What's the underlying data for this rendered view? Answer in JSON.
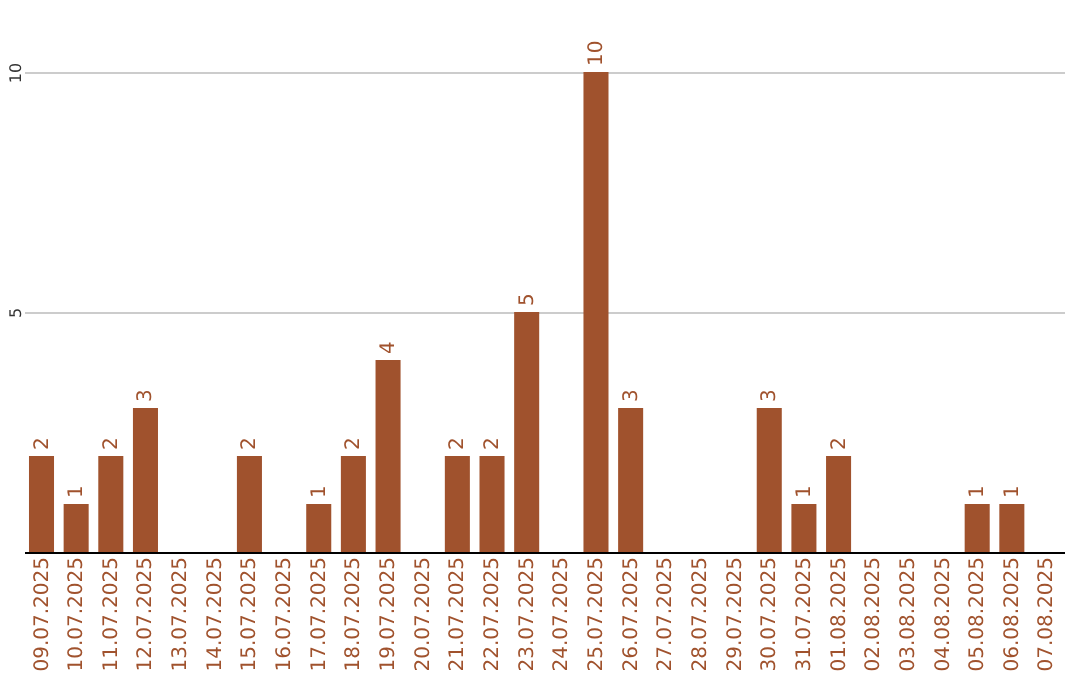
{
  "chart_data": {
    "type": "bar",
    "categories": [
      "09.07.2025",
      "10.07.2025",
      "11.07.2025",
      "12.07.2025",
      "13.07.2025",
      "14.07.2025",
      "15.07.2025",
      "16.07.2025",
      "17.07.2025",
      "18.07.2025",
      "19.07.2025",
      "20.07.2025",
      "21.07.2025",
      "22.07.2025",
      "23.07.2025",
      "24.07.2025",
      "25.07.2025",
      "26.07.2025",
      "27.07.2025",
      "28.07.2025",
      "29.07.2025",
      "30.07.2025",
      "31.07.2025",
      "01.08.2025",
      "02.08.2025",
      "03.08.2025",
      "04.08.2025",
      "05.08.2025",
      "06.08.2025",
      "07.08.2025"
    ],
    "values": [
      2,
      1,
      2,
      3,
      0,
      0,
      2,
      0,
      1,
      2,
      4,
      0,
      2,
      2,
      5,
      0,
      10,
      3,
      0,
      0,
      0,
      3,
      1,
      2,
      0,
      0,
      0,
      1,
      1,
      0
    ],
    "value_labels": [
      "2",
      "1",
      "2",
      "3",
      null,
      null,
      "2",
      null,
      "1",
      "2",
      "4",
      null,
      "2",
      "2",
      "5",
      null,
      "10",
      "3",
      null,
      null,
      null,
      "3",
      "1",
      "2",
      null,
      null,
      null,
      "1",
      "1",
      null
    ],
    "color": "#a0522d",
    "ylim": [
      0,
      10
    ],
    "yticks": [
      5,
      10
    ],
    "grid": "y"
  }
}
